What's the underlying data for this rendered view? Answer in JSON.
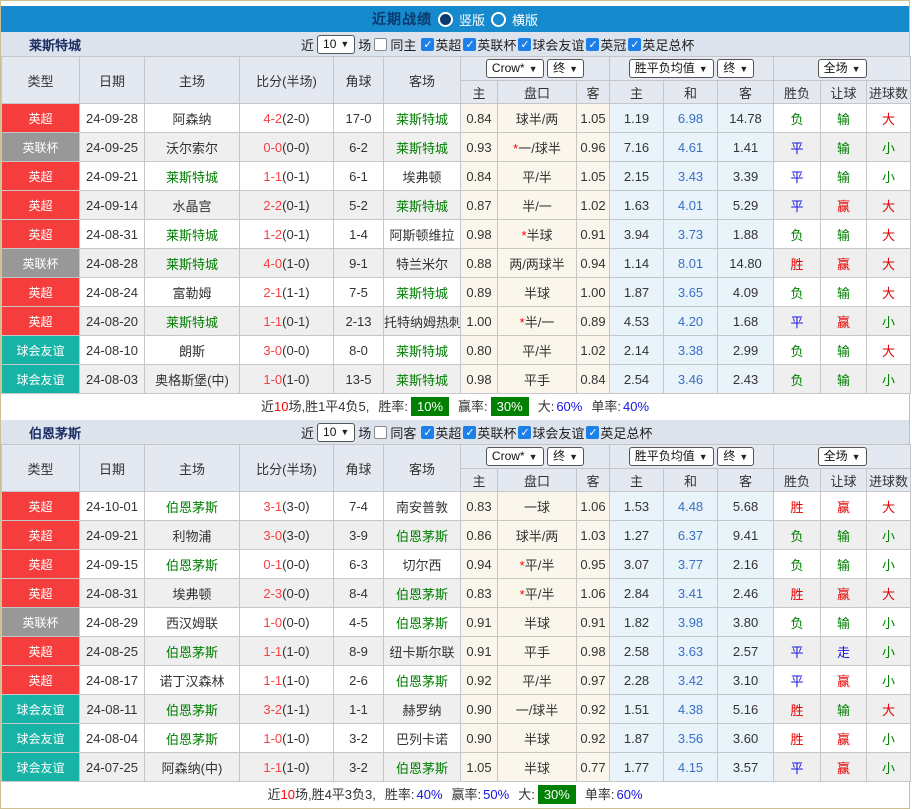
{
  "header": {
    "title": "近期战绩",
    "view_options": [
      {
        "label": "竖版",
        "selected": true
      },
      {
        "label": "横版",
        "selected": false
      }
    ]
  },
  "table": {
    "columns": [
      "类型",
      "日期",
      "主场",
      "比分(半场)",
      "角球",
      "客场"
    ],
    "subcols": [
      "主",
      "盘口",
      "客",
      "主",
      "和",
      "客",
      "胜负",
      "让球",
      "进球数"
    ],
    "selects": {
      "bookmaker": "Crow*",
      "final_a": "终",
      "average": "胜平负均值",
      "final_b": "终",
      "scope": "全场"
    }
  },
  "colors": {
    "league": {
      "英超": "#f53d3d",
      "英联杯": "#989898",
      "球会友谊": "#17b3a6",
      "英冠": "#f53d3d",
      "英足总杯": "#f53d3d"
    },
    "outcome": {
      "胜": "#e60000",
      "赢": "#e60000",
      "大": "#e60000",
      "负": "#008000",
      "输": "#008000",
      "小": "#008000",
      "平": "#1414e6",
      "走": "#1414e6"
    },
    "team_highlight": "#008000",
    "score_red": "#fa4040",
    "mean_draw_blue": "#3a6fc4",
    "header_bar_blue": "#168acc",
    "badge_green": "#008000",
    "stat_blue": "#1414e6"
  },
  "sections": [
    {
      "team": "莱斯特城",
      "controls": {
        "near": "近",
        "recent_value": "10",
        "unit": "场",
        "same_label": "同主",
        "same_checked": false,
        "leagues": [
          "英超",
          "英联杯",
          "球会友谊",
          "英冠",
          "英足总杯"
        ]
      },
      "rows": [
        {
          "league": "英超",
          "date": "24-09-28",
          "home": "阿森纳",
          "score": "4-2",
          "half": "(2-0)",
          "corner": "17-0",
          "away": "莱斯特城",
          "odds_home": "0.84",
          "line": "球半/两",
          "odds_away": "1.05",
          "avg_home": "1.19",
          "avg_draw": "6.98",
          "avg_away": "14.78",
          "result": "负",
          "handicap_result": "输",
          "goals_result": "大"
        },
        {
          "league": "英联杯",
          "date": "24-09-25",
          "home": "沃尔索尔",
          "score": "0-0",
          "half": "(0-0)",
          "corner": "6-2",
          "away": "莱斯特城",
          "odds_home": "0.93",
          "line": "*一/球半",
          "odds_away": "0.96",
          "avg_home": "7.16",
          "avg_draw": "4.61",
          "avg_away": "1.41",
          "result": "平",
          "handicap_result": "输",
          "goals_result": "小"
        },
        {
          "league": "英超",
          "date": "24-09-21",
          "home": "莱斯特城",
          "score": "1-1",
          "half": "(0-1)",
          "corner": "6-1",
          "away": "埃弗顿",
          "odds_home": "0.84",
          "line": "平/半",
          "odds_away": "1.05",
          "avg_home": "2.15",
          "avg_draw": "3.43",
          "avg_away": "3.39",
          "result": "平",
          "handicap_result": "输",
          "goals_result": "小"
        },
        {
          "league": "英超",
          "date": "24-09-14",
          "home": "水晶宫",
          "score": "2-2",
          "half": "(0-1)",
          "corner": "5-2",
          "away": "莱斯特城",
          "odds_home": "0.87",
          "line": "半/一",
          "odds_away": "1.02",
          "avg_home": "1.63",
          "avg_draw": "4.01",
          "avg_away": "5.29",
          "result": "平",
          "handicap_result": "赢",
          "goals_result": "大"
        },
        {
          "league": "英超",
          "date": "24-08-31",
          "home": "莱斯特城",
          "score": "1-2",
          "half": "(0-1)",
          "corner": "1-4",
          "away": "阿斯顿维拉",
          "odds_home": "0.98",
          "line": "*半球",
          "odds_away": "0.91",
          "avg_home": "3.94",
          "avg_draw": "3.73",
          "avg_away": "1.88",
          "result": "负",
          "handicap_result": "输",
          "goals_result": "大"
        },
        {
          "league": "英联杯",
          "date": "24-08-28",
          "home": "莱斯特城",
          "score": "4-0",
          "half": "(1-0)",
          "corner": "9-1",
          "away": "特兰米尔",
          "odds_home": "0.88",
          "line": "两/两球半",
          "odds_away": "0.94",
          "avg_home": "1.14",
          "avg_draw": "8.01",
          "avg_away": "14.80",
          "result": "胜",
          "handicap_result": "赢",
          "goals_result": "大"
        },
        {
          "league": "英超",
          "date": "24-08-24",
          "home": "富勒姆",
          "score": "2-1",
          "half": "(1-1)",
          "corner": "7-5",
          "away": "莱斯特城",
          "odds_home": "0.89",
          "line": "半球",
          "odds_away": "1.00",
          "avg_home": "1.87",
          "avg_draw": "3.65",
          "avg_away": "4.09",
          "result": "负",
          "handicap_result": "输",
          "goals_result": "大"
        },
        {
          "league": "英超",
          "date": "24-08-20",
          "home": "莱斯特城",
          "score": "1-1",
          "half": "(0-1)",
          "corner": "2-13",
          "away": "托特纳姆热刺",
          "odds_home": "1.00",
          "line": "*半/一",
          "odds_away": "0.89",
          "avg_home": "4.53",
          "avg_draw": "4.20",
          "avg_away": "1.68",
          "result": "平",
          "handicap_result": "赢",
          "goals_result": "小"
        },
        {
          "league": "球会友谊",
          "date": "24-08-10",
          "home": "朗斯",
          "score": "3-0",
          "half": "(0-0)",
          "corner": "8-0",
          "away": "莱斯特城",
          "odds_home": "0.80",
          "line": "平/半",
          "odds_away": "1.02",
          "avg_home": "2.14",
          "avg_draw": "3.38",
          "avg_away": "2.99",
          "result": "负",
          "handicap_result": "输",
          "goals_result": "大"
        },
        {
          "league": "球会友谊",
          "date": "24-08-03",
          "home": "奥格斯堡(中)",
          "score": "1-0",
          "half": "(1-0)",
          "corner": "13-5",
          "away": "莱斯特城",
          "odds_home": "0.98",
          "line": "平手",
          "odds_away": "0.84",
          "avg_home": "2.54",
          "avg_draw": "3.46",
          "avg_away": "2.43",
          "result": "负",
          "handicap_result": "输",
          "goals_result": "小"
        }
      ],
      "summary": {
        "near": "近",
        "games": "10",
        "after": "场,",
        "record": "胜1平4负5,",
        "stats": [
          {
            "label": "胜率:",
            "value": "10%",
            "badge": true
          },
          {
            "label": "赢率:",
            "value": "30%",
            "badge": true
          },
          {
            "label": "大:",
            "value": "60%",
            "badge": false
          },
          {
            "label": "单率:",
            "value": "40%",
            "badge": false
          }
        ]
      }
    },
    {
      "team": "伯恩茅斯",
      "controls": {
        "near": "近",
        "recent_value": "10",
        "unit": "场",
        "same_label": "同客",
        "same_checked": false,
        "leagues": [
          "英超",
          "英联杯",
          "球会友谊",
          "英足总杯"
        ]
      },
      "rows": [
        {
          "league": "英超",
          "date": "24-10-01",
          "home": "伯恩茅斯",
          "score": "3-1",
          "half": "(3-0)",
          "corner": "7-4",
          "away": "南安普敦",
          "odds_home": "0.83",
          "line": "一球",
          "odds_away": "1.06",
          "avg_home": "1.53",
          "avg_draw": "4.48",
          "avg_away": "5.68",
          "result": "胜",
          "handicap_result": "赢",
          "goals_result": "大"
        },
        {
          "league": "英超",
          "date": "24-09-21",
          "home": "利物浦",
          "score": "3-0",
          "half": "(3-0)",
          "corner": "3-9",
          "away": "伯恩茅斯",
          "odds_home": "0.86",
          "line": "球半/两",
          "odds_away": "1.03",
          "avg_home": "1.27",
          "avg_draw": "6.37",
          "avg_away": "9.41",
          "result": "负",
          "handicap_result": "输",
          "goals_result": "小"
        },
        {
          "league": "英超",
          "date": "24-09-15",
          "home": "伯恩茅斯",
          "score": "0-1",
          "half": "(0-0)",
          "corner": "6-3",
          "away": "切尔西",
          "odds_home": "0.94",
          "line": "*平/半",
          "odds_away": "0.95",
          "avg_home": "3.07",
          "avg_draw": "3.77",
          "avg_away": "2.16",
          "result": "负",
          "handicap_result": "输",
          "goals_result": "小"
        },
        {
          "league": "英超",
          "date": "24-08-31",
          "home": "埃弗顿",
          "score": "2-3",
          "half": "(0-0)",
          "corner": "8-4",
          "away": "伯恩茅斯",
          "odds_home": "0.83",
          "line": "*平/半",
          "odds_away": "1.06",
          "avg_home": "2.84",
          "avg_draw": "3.41",
          "avg_away": "2.46",
          "result": "胜",
          "handicap_result": "赢",
          "goals_result": "大"
        },
        {
          "league": "英联杯",
          "date": "24-08-29",
          "home": "西汉姆联",
          "score": "1-0",
          "half": "(0-0)",
          "corner": "4-5",
          "away": "伯恩茅斯",
          "odds_home": "0.91",
          "line": "半球",
          "odds_away": "0.91",
          "avg_home": "1.82",
          "avg_draw": "3.98",
          "avg_away": "3.80",
          "result": "负",
          "handicap_result": "输",
          "goals_result": "小"
        },
        {
          "league": "英超",
          "date": "24-08-25",
          "home": "伯恩茅斯",
          "score": "1-1",
          "half": "(1-0)",
          "corner": "8-9",
          "away": "纽卡斯尔联",
          "odds_home": "0.91",
          "line": "平手",
          "odds_away": "0.98",
          "avg_home": "2.58",
          "avg_draw": "3.63",
          "avg_away": "2.57",
          "result": "平",
          "handicap_result": "走",
          "goals_result": "小"
        },
        {
          "league": "英超",
          "date": "24-08-17",
          "home": "诺丁汉森林",
          "score": "1-1",
          "half": "(1-0)",
          "corner": "2-6",
          "away": "伯恩茅斯",
          "odds_home": "0.92",
          "line": "平/半",
          "odds_away": "0.97",
          "avg_home": "2.28",
          "avg_draw": "3.42",
          "avg_away": "3.10",
          "result": "平",
          "handicap_result": "赢",
          "goals_result": "小"
        },
        {
          "league": "球会友谊",
          "date": "24-08-11",
          "home": "伯恩茅斯",
          "score": "3-2",
          "half": "(1-1)",
          "corner": "1-1",
          "away": "赫罗纳",
          "odds_home": "0.90",
          "line": "一/球半",
          "odds_away": "0.92",
          "avg_home": "1.51",
          "avg_draw": "4.38",
          "avg_away": "5.16",
          "result": "胜",
          "handicap_result": "输",
          "goals_result": "大"
        },
        {
          "league": "球会友谊",
          "date": "24-08-04",
          "home": "伯恩茅斯",
          "score": "1-0",
          "half": "(1-0)",
          "corner": "3-2",
          "away": "巴列卡诺",
          "odds_home": "0.90",
          "line": "半球",
          "odds_away": "0.92",
          "avg_home": "1.87",
          "avg_draw": "3.56",
          "avg_away": "3.60",
          "result": "胜",
          "handicap_result": "赢",
          "goals_result": "小"
        },
        {
          "league": "球会友谊",
          "date": "24-07-25",
          "home": "阿森纳(中)",
          "score": "1-1",
          "half": "(1-0)",
          "corner": "3-2",
          "away": "伯恩茅斯",
          "odds_home": "1.05",
          "line": "半球",
          "odds_away": "0.77",
          "avg_home": "1.77",
          "avg_draw": "4.15",
          "avg_away": "3.57",
          "result": "平",
          "handicap_result": "赢",
          "goals_result": "小"
        }
      ],
      "summary": {
        "near": "近",
        "games": "10",
        "after": "场,",
        "record": "胜4平3负3,",
        "stats": [
          {
            "label": "胜率:",
            "value": "40%",
            "badge": false
          },
          {
            "label": "赢率:",
            "value": "50%",
            "badge": false
          },
          {
            "label": "大:",
            "value": "30%",
            "badge": true
          },
          {
            "label": "单率:",
            "value": "60%",
            "badge": false
          }
        ]
      }
    }
  ]
}
